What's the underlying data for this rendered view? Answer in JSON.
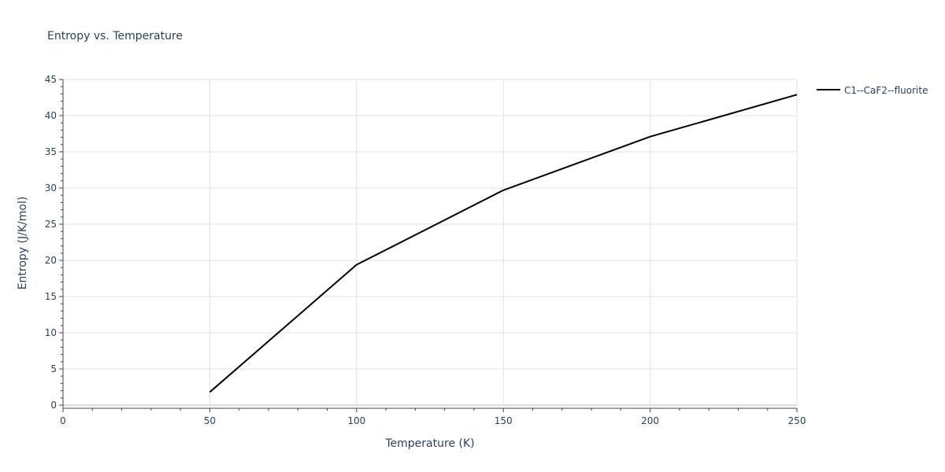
{
  "chart_data": {
    "type": "line",
    "title": "Entropy vs. Temperature",
    "xlabel": "Temperature (K)",
    "ylabel": "Entropy (J/K/mol)",
    "xlim": [
      0,
      250
    ],
    "ylim": [
      0,
      45
    ],
    "x_ticks": [
      0,
      50,
      100,
      150,
      200,
      250
    ],
    "y_ticks": [
      0,
      5,
      10,
      15,
      20,
      25,
      30,
      35,
      40,
      45
    ],
    "grid": true,
    "legend_position": "top-right",
    "series": [
      {
        "name": "C1--CaF2--fluorite",
        "color": "#000000",
        "x": [
          50,
          100,
          150,
          200,
          250
        ],
        "y": [
          1.8,
          19.4,
          29.7,
          37.1,
          42.9
        ]
      }
    ]
  }
}
